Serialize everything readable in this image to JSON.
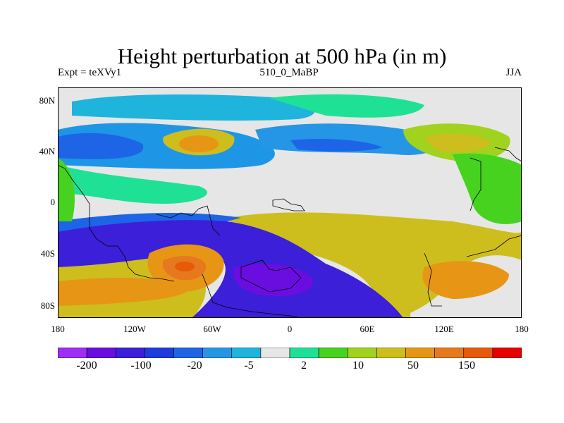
{
  "title": "Height perturbation at 500 hPa (in m)",
  "subtitle_left": "Expt = teXVy1",
  "subtitle_center": "510_0_MaBP",
  "subtitle_right": "JJA",
  "y_ticks": [
    "80N",
    "40N",
    "0",
    "40S",
    "80S"
  ],
  "x_ticks": [
    "180",
    "120W",
    "60W",
    "0",
    "60E",
    "120E",
    "180"
  ],
  "colorbar": {
    "colors": [
      "#9e2ff2",
      "#6a0de0",
      "#3c1fd8",
      "#1e3cdd",
      "#1e64e6",
      "#2596e6",
      "#1eb4dc",
      "#e6e6e6",
      "#1ee196",
      "#46d21e",
      "#a0d21e",
      "#cdbe1e",
      "#e69614",
      "#e6781e",
      "#e65a0a",
      "#e60000"
    ],
    "labels": [
      "-200",
      "-100",
      "-20",
      "-5",
      "2",
      "10",
      "50",
      "150"
    ]
  }
}
